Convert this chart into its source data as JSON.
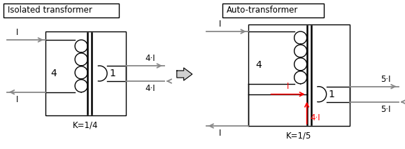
{
  "bg_color": "#ffffff",
  "line_color": "#000000",
  "red_color": "#ff0000",
  "gray_color": "#888888",
  "box1_title": "Isolated transformer",
  "box2_title": "Auto-transformer",
  "label_K1": "K=1/4",
  "label_K2": "K=1/5",
  "label_4I": "4·I",
  "label_5I": "5·I",
  "label_I": "I",
  "font_size": 8.5,
  "font_size_num": 10
}
